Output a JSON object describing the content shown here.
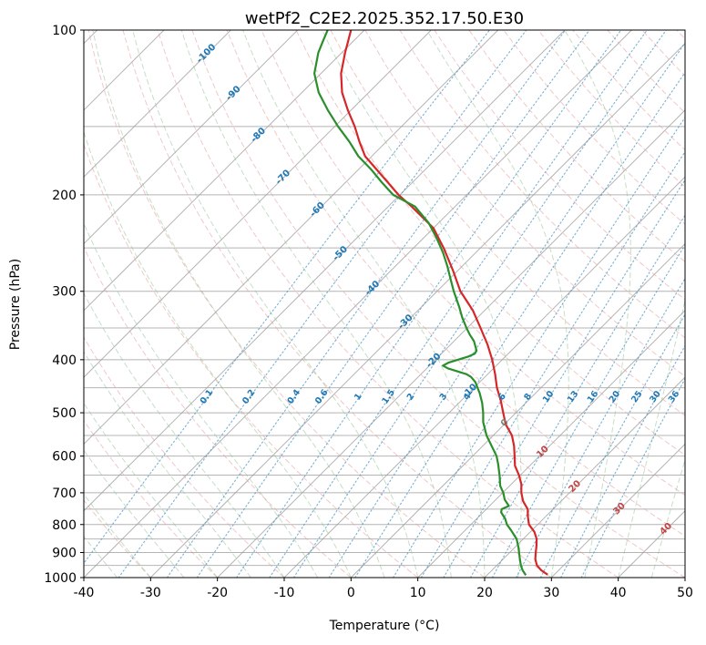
{
  "chart_data": {
    "type": "line",
    "variant": "skew-t-log-p",
    "title": "wetPf2_C2E2.2025.352.17.50.E30",
    "xlabel": "Temperature (°C)",
    "ylabel": "Pressure (hPa)",
    "xlim": [
      -40,
      50
    ],
    "plim": [
      1000,
      100
    ],
    "x_ticks": [
      -40,
      -30,
      -20,
      -10,
      0,
      10,
      20,
      30,
      40,
      50
    ],
    "p_ticks": [
      100,
      200,
      300,
      400,
      500,
      600,
      700,
      800,
      900,
      1000
    ],
    "p_gridlines": [
      100,
      150,
      200,
      250,
      300,
      350,
      400,
      450,
      500,
      550,
      600,
      650,
      700,
      750,
      800,
      850,
      900,
      950,
      1000
    ],
    "grid": true,
    "skew_deg_C_per_decade": 82,
    "isotherms": {
      "values": [
        -120,
        -110,
        -100,
        -90,
        -80,
        -70,
        -60,
        -50,
        -40,
        -30,
        -20,
        -10,
        0,
        10,
        20,
        30,
        40,
        50
      ],
      "labels": [
        {
          "t": -100,
          "p": 110,
          "color": "blue"
        },
        {
          "t": -90,
          "p": 130,
          "color": "blue"
        },
        {
          "t": -80,
          "p": 155,
          "color": "blue"
        },
        {
          "t": -70,
          "p": 185,
          "color": "blue"
        },
        {
          "t": -60,
          "p": 212,
          "color": "blue"
        },
        {
          "t": -50,
          "p": 255,
          "color": "blue"
        },
        {
          "t": -40,
          "p": 295,
          "color": "blue"
        },
        {
          "t": -30,
          "p": 340,
          "color": "blue"
        },
        {
          "t": -20,
          "p": 400,
          "color": "blue"
        },
        {
          "t": -10,
          "p": 455,
          "color": "blue"
        },
        {
          "t": 0,
          "p": 520,
          "color": "zero"
        },
        {
          "t": 10,
          "p": 587,
          "color": "red"
        },
        {
          "t": 20,
          "p": 679,
          "color": "red"
        },
        {
          "t": 30,
          "p": 746,
          "color": "red"
        },
        {
          "t": 40,
          "p": 812,
          "color": "red"
        }
      ]
    },
    "dry_adiabats": {
      "theta_start": -30,
      "theta_end": 190,
      "step": 10
    },
    "moist_adiabats": {
      "t_start": -40,
      "t_end": 45,
      "step": 5
    },
    "mixing_ratios": {
      "values_g_per_kg": [
        0.1,
        0.2,
        0.4,
        0.6,
        1,
        1.5,
        2,
        3,
        4,
        6,
        8,
        10,
        13,
        16,
        20,
        25,
        30,
        36
      ],
      "label_pressure": 465
    },
    "series": [
      {
        "name": "temperature",
        "color": "#d62728",
        "pressure": [
          988,
          970,
          950,
          925,
          900,
          875,
          850,
          825,
          800,
          775,
          750,
          725,
          700,
          675,
          650,
          625,
          600,
          575,
          550,
          525,
          500,
          475,
          450,
          425,
          400,
          375,
          350,
          325,
          300,
          275,
          250,
          230,
          210,
          200,
          190,
          180,
          170,
          160,
          150,
          140,
          130,
          120,
          110,
          100
        ],
        "values": [
          29.0,
          27.4,
          26.0,
          24.8,
          23.9,
          23.0,
          22.0,
          20.6,
          18.7,
          17.4,
          16.2,
          14.3,
          12.8,
          11.5,
          9.8,
          7.8,
          6.3,
          4.7,
          2.8,
          0.2,
          -1.9,
          -4.1,
          -6.6,
          -8.9,
          -11.5,
          -14.5,
          -18.0,
          -21.8,
          -26.5,
          -30.7,
          -35.5,
          -40.0,
          -46.5,
          -50.2,
          -53.6,
          -57.2,
          -61.0,
          -64.0,
          -67.0,
          -70.5,
          -74.0,
          -77.0,
          -79.5,
          -82.0
        ]
      },
      {
        "name": "dewpoint",
        "color": "#2a8f2a",
        "pressure": [
          990,
          970,
          950,
          925,
          900,
          880,
          850,
          820,
          800,
          780,
          760,
          750,
          740,
          730,
          720,
          700,
          680,
          650,
          620,
          600,
          580,
          550,
          520,
          500,
          480,
          460,
          450,
          440,
          430,
          425,
          420,
          415,
          410,
          405,
          400,
          395,
          390,
          385,
          380,
          370,
          360,
          350,
          335,
          320,
          300,
          285,
          270,
          255,
          240,
          225,
          210,
          200,
          190,
          180,
          170,
          160,
          150,
          140,
          130,
          120,
          110,
          105,
          100
        ],
        "values": [
          25.8,
          24.6,
          23.6,
          22.5,
          21.4,
          20.5,
          19.0,
          16.9,
          15.4,
          14.2,
          12.7,
          12.3,
          12.9,
          12.1,
          11.3,
          10.1,
          8.6,
          6.9,
          5.0,
          3.6,
          1.8,
          -1.0,
          -3.5,
          -4.9,
          -6.5,
          -8.4,
          -9.5,
          -10.6,
          -12.1,
          -13.2,
          -15.0,
          -16.8,
          -18.0,
          -17.6,
          -16.6,
          -15.6,
          -15.0,
          -15.2,
          -15.8,
          -17.0,
          -18.6,
          -20.1,
          -22.3,
          -24.4,
          -27.5,
          -29.8,
          -32.2,
          -34.9,
          -38.0,
          -41.5,
          -46.0,
          -51.0,
          -54.5,
          -58.0,
          -62.0,
          -65.5,
          -69.5,
          -73.5,
          -77.5,
          -81.0,
          -83.5,
          -84.5,
          -85.5
        ]
      }
    ],
    "colors": {
      "frame": "#000000",
      "grid": "#9b9b9b",
      "isotherm": "#9b9b9b",
      "dry_adiabat": "#e59b9b",
      "moist_adiabat": "#8cc08c",
      "mixing_ratio": "#4e96c8",
      "label_blue": "#1f77b4",
      "label_red": "#c44545",
      "label_zero": "#7f7f7f",
      "temperature_line": "#d62728",
      "dewpoint_line": "#2a8f2a"
    }
  }
}
